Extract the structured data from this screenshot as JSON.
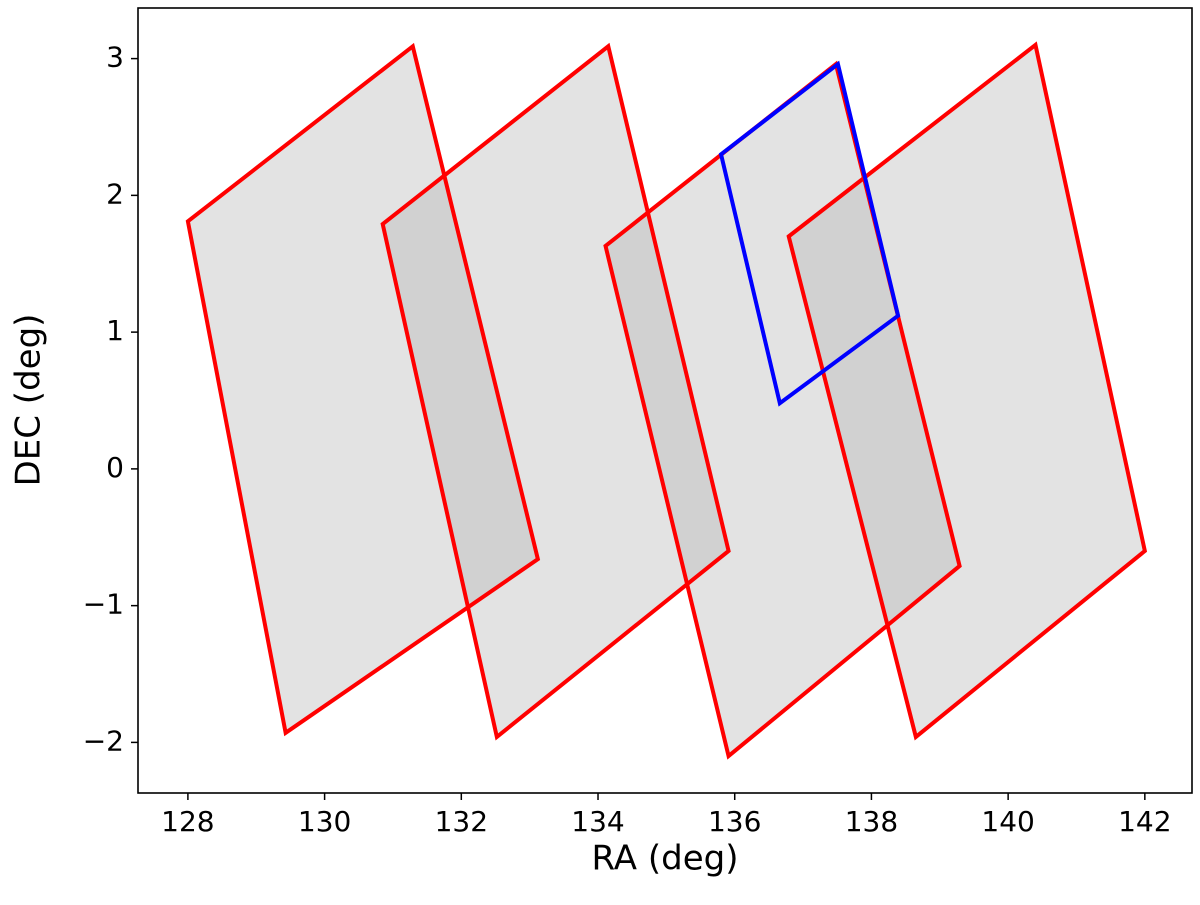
{
  "chart_data": {
    "type": "polygon",
    "xlabel": "RA (deg)",
    "ylabel": "DEC (deg)",
    "xlim": [
      127.27,
      142.69
    ],
    "ylim": [
      -2.37,
      3.37
    ],
    "xticks": [
      128,
      130,
      132,
      134,
      136,
      138,
      140,
      142
    ],
    "yticks": [
      {
        "value": -2,
        "label": "−2"
      },
      {
        "value": -1,
        "label": "−1"
      },
      0,
      1,
      2,
      3
    ],
    "series": [
      {
        "color": "#ff0000",
        "fill": "#b0b0b0",
        "x": [
          128.0,
          131.29,
          133.12,
          129.43
        ],
        "y": [
          1.81,
          3.09,
          -0.66,
          -1.93
        ]
      },
      {
        "color": "#ff0000",
        "fill": "#b0b0b0",
        "x": [
          130.85,
          134.15,
          135.91,
          132.52
        ],
        "y": [
          1.79,
          3.09,
          -0.6,
          -1.96
        ]
      },
      {
        "color": "#ff0000",
        "fill": "#b0b0b0",
        "x": [
          134.11,
          137.48,
          139.29,
          135.91
        ],
        "y": [
          1.63,
          2.96,
          -0.71,
          -2.1
        ]
      },
      {
        "color": "#ff0000",
        "fill": "#b0b0b0",
        "x": [
          136.79,
          140.4,
          142.0,
          138.65
        ],
        "y": [
          1.7,
          3.1,
          -0.6,
          -1.96
        ]
      },
      {
        "color": "#0000ff",
        "x": [
          135.8,
          137.51,
          138.39,
          136.66
        ],
        "y": [
          2.3,
          2.96,
          1.12,
          0.48
        ]
      }
    ]
  }
}
